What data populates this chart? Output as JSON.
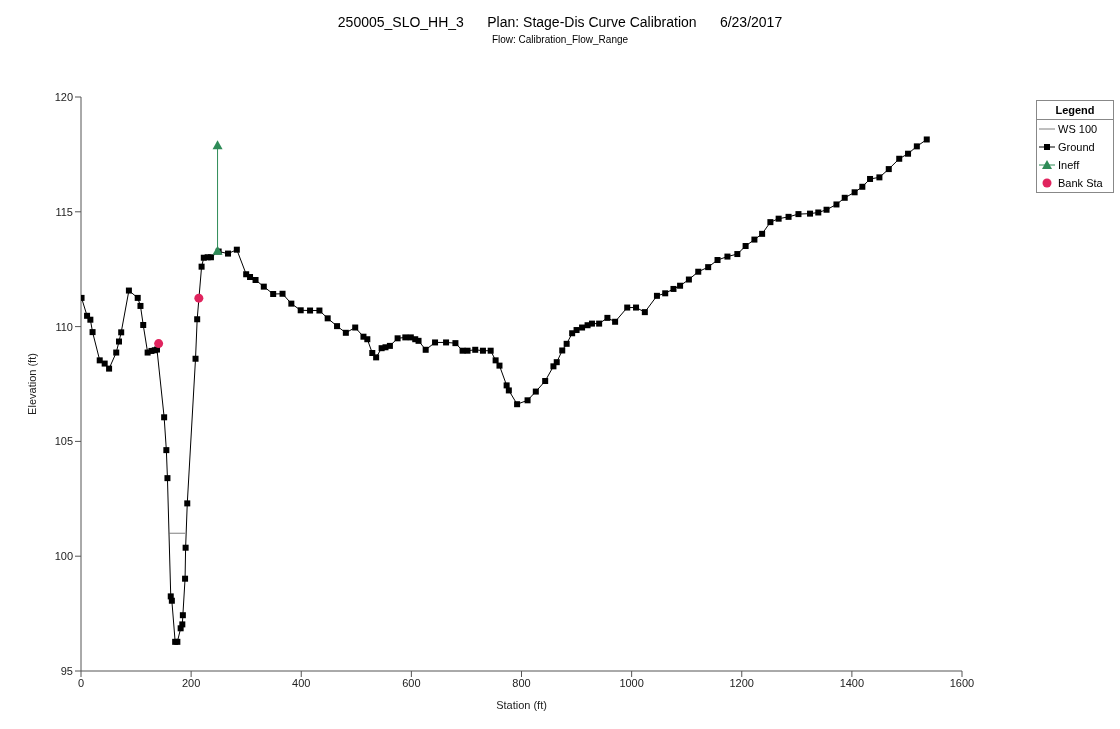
{
  "chart_data": {
    "type": "line",
    "title": "250005_SLO_HH_3      Plan: Stage-Dis Curve Calibration      6/23/2017",
    "subtitle": "Flow: Calibration_Flow_Range",
    "xlabel": "Station (ft)",
    "ylabel": "Elevation (ft)",
    "legend_title": "Legend",
    "legend": "top right",
    "xlim": [
      0,
      1600
    ],
    "xticks": [
      0,
      200,
      400,
      600,
      800,
      1000,
      1200,
      1400,
      1600
    ],
    "ylim": [
      95,
      120
    ],
    "yticks": [
      95,
      100,
      105,
      110,
      115,
      120
    ],
    "series": [
      {
        "name": "WS 100",
        "color": "#7f7f7f",
        "marker": "none",
        "x": [
          161,
          189
        ],
        "values": [
          101.0,
          101.0
        ]
      },
      {
        "name": "Ground",
        "color": "#000000",
        "marker": "square",
        "x": [
          1,
          11,
          17,
          21,
          34,
          43,
          51,
          64,
          69,
          73,
          87,
          103,
          108,
          113,
          121,
          128,
          134,
          138,
          151,
          155,
          157,
          163,
          165,
          171,
          175,
          181,
          184,
          185,
          189,
          190,
          193,
          208,
          211,
          219,
          223,
          230,
          236,
          250,
          267,
          283,
          300,
          307,
          317,
          332,
          349,
          366,
          382,
          399,
          416,
          433,
          448,
          465,
          481,
          498,
          513,
          520,
          529,
          536,
          546,
          553,
          561,
          575,
          589,
          599,
          607,
          613,
          626,
          643,
          663,
          680,
          693,
          702,
          716,
          730,
          744,
          753,
          760,
          773,
          777,
          792,
          811,
          826,
          843,
          858,
          864,
          874,
          882,
          892,
          900,
          910,
          920,
          928,
          941,
          956,
          970,
          992,
          1008,
          1024,
          1046,
          1061,
          1076,
          1088,
          1104,
          1121,
          1139,
          1156,
          1174,
          1192,
          1207,
          1223,
          1237,
          1252,
          1267,
          1285,
          1303,
          1324,
          1339,
          1354,
          1372,
          1387,
          1405,
          1419,
          1433,
          1450,
          1467,
          1486,
          1502,
          1518,
          1536
        ],
        "values": [
          111.25,
          110.47,
          110.3,
          109.76,
          108.53,
          108.39,
          108.17,
          108.87,
          109.35,
          109.75,
          111.57,
          111.25,
          110.9,
          110.07,
          108.87,
          108.94,
          108.97,
          109.0,
          106.05,
          104.62,
          103.4,
          98.25,
          98.06,
          96.27,
          96.27,
          96.86,
          97.03,
          97.43,
          99.02,
          100.37,
          102.3,
          108.6,
          110.32,
          112.61,
          113.0,
          113.02,
          113.02,
          113.27,
          113.18,
          113.35,
          112.28,
          112.16,
          112.03,
          111.74,
          111.42,
          111.43,
          111.0,
          110.71,
          110.7,
          110.7,
          110.36,
          110.02,
          109.73,
          109.96,
          109.56,
          109.45,
          108.85,
          108.66,
          109.06,
          109.1,
          109.16,
          109.49,
          109.53,
          109.53,
          109.45,
          109.38,
          108.99,
          109.31,
          109.31,
          109.28,
          108.95,
          108.95,
          108.99,
          108.95,
          108.95,
          108.53,
          108.3,
          107.44,
          107.22,
          106.62,
          106.79,
          107.17,
          107.63,
          108.27,
          108.45,
          108.96,
          109.25,
          109.71,
          109.85,
          109.96,
          110.06,
          110.13,
          110.13,
          110.38,
          110.21,
          110.83,
          110.83,
          110.63,
          111.34,
          111.45,
          111.64,
          111.78,
          112.05,
          112.39,
          112.59,
          112.9,
          113.05,
          113.16,
          113.51,
          113.79,
          114.04,
          114.55,
          114.7,
          114.78,
          114.9,
          114.92,
          114.97,
          115.09,
          115.32,
          115.61,
          115.85,
          116.09,
          116.43,
          116.5,
          116.86,
          117.31,
          117.53,
          117.85,
          118.15
        ]
      },
      {
        "name": "Ineff",
        "color": "#2e8b57",
        "marker": "triangle",
        "x": [
          248,
          248
        ],
        "values": [
          113.3,
          117.9
        ]
      },
      {
        "name": "Bank Sta",
        "type": "scatter",
        "color": "#e0245e",
        "marker": "circle",
        "x": [
          141,
          214
        ],
        "values": [
          109.26,
          111.24
        ]
      }
    ]
  }
}
